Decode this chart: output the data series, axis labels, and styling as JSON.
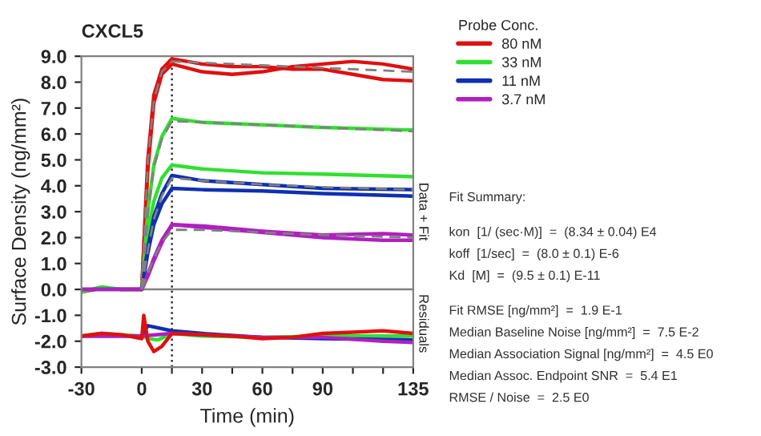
{
  "chart_data": {
    "type": "line",
    "title": "CXCL5",
    "xlabel": "Time (min)",
    "ylabel": "Surface Density (ng/mm²)",
    "legend_title": "Probe Conc.",
    "legend": "top right",
    "xlim": [
      -30,
      135
    ],
    "xticks": [
      -30,
      {
        "value": 15,
        "label": null
      },
      0,
      30,
      {
        "value": 45,
        "label": null
      },
      60,
      {
        "value": 75,
        "label": null
      },
      90,
      {
        "value": 105,
        "label": null
      },
      {
        "value": 120,
        "label": null
      },
      135
    ],
    "ylim": [
      -3,
      9
    ],
    "yticks": [
      {
        "value": -3,
        "label": "-3.0"
      },
      {
        "value": -2,
        "label": "-2.0"
      },
      {
        "value": -1,
        "label": "-1.0"
      },
      {
        "value": 0,
        "label": "0.0"
      },
      {
        "value": 1,
        "label": "1.0"
      },
      {
        "value": 2,
        "label": "2.0"
      },
      {
        "value": 3,
        "label": "3.0"
      },
      {
        "value": 4,
        "label": "4.0"
      },
      {
        "value": 5,
        "label": "5.0"
      },
      {
        "value": 6,
        "label": "6.0"
      },
      {
        "value": 7,
        "label": "7.0"
      },
      {
        "value": 8,
        "label": "8.0"
      },
      {
        "value": 9,
        "label": "9.0"
      }
    ],
    "grid": false,
    "marker": "none",
    "ref_lines": [
      {
        "axis": "y",
        "value": 0,
        "label": null,
        "color": "#808080",
        "line_style": "solid"
      },
      {
        "axis": "x",
        "value": 15,
        "label": null,
        "color": "#303030",
        "line_style": "dotted"
      }
    ],
    "series": [
      {
        "name": "80 nM",
        "color": "#e01010",
        "x": [
          -30,
          -20,
          -10,
          0,
          3,
          6,
          10,
          15,
          30,
          45,
          60,
          75,
          90,
          105,
          120,
          135
        ],
        "values": [
          -0.1,
          0.05,
          0.0,
          0.0,
          5.0,
          7.5,
          8.5,
          8.9,
          8.7,
          8.6,
          8.6,
          8.5,
          8.5,
          8.3,
          8.1,
          8.05
        ]
      },
      {
        "color": "#e01010",
        "x": [
          0,
          3,
          6,
          10,
          15,
          30,
          45,
          60,
          75,
          90,
          105,
          120,
          135
        ],
        "values": [
          0.0,
          4.6,
          7.2,
          8.3,
          8.7,
          8.4,
          8.3,
          8.4,
          8.6,
          8.7,
          8.8,
          8.7,
          8.5
        ]
      },
      {
        "name": "33 nM",
        "color": "#30e030",
        "x": [
          -30,
          -20,
          -10,
          0,
          3,
          6,
          10,
          15,
          30,
          60,
          90,
          135
        ],
        "values": [
          -0.1,
          0.1,
          0.0,
          0.0,
          3.0,
          4.8,
          5.9,
          6.6,
          6.45,
          6.35,
          6.25,
          6.15
        ]
      },
      {
        "color": "#30e030",
        "x": [
          0,
          3,
          6,
          10,
          15,
          30,
          60,
          90,
          135
        ],
        "values": [
          0.0,
          2.2,
          3.4,
          4.3,
          4.8,
          4.65,
          4.5,
          4.45,
          4.35
        ]
      },
      {
        "name": "11 nM",
        "color": "#1030b0",
        "x": [
          -30,
          -10,
          0,
          3,
          6,
          10,
          15,
          30,
          60,
          90,
          135
        ],
        "values": [
          0.0,
          0.0,
          0.0,
          1.6,
          2.8,
          3.7,
          4.4,
          4.2,
          4.05,
          3.9,
          3.85
        ]
      },
      {
        "color": "#1030b0",
        "x": [
          0,
          3,
          6,
          10,
          15,
          30,
          60,
          90,
          135
        ],
        "values": [
          0.0,
          1.4,
          2.5,
          3.3,
          3.9,
          3.85,
          3.8,
          3.7,
          3.6
        ]
      },
      {
        "name": "3.7 nM",
        "color": "#b020c0",
        "x": [
          -30,
          -10,
          0,
          3,
          6,
          10,
          15,
          30,
          60,
          90,
          120,
          135
        ],
        "values": [
          0.0,
          0.0,
          0.0,
          0.6,
          1.2,
          1.9,
          2.5,
          2.45,
          2.25,
          2.1,
          2.15,
          2.1
        ]
      },
      {
        "color": "#b020c0",
        "x": [
          0,
          3,
          6,
          10,
          15,
          30,
          60,
          90,
          120,
          135
        ],
        "values": [
          0.0,
          0.5,
          1.1,
          1.8,
          2.5,
          2.4,
          2.2,
          2.0,
          1.9,
          1.9
        ]
      },
      {
        "color": "#808080",
        "line_style": "dashed",
        "x": [
          0,
          3,
          6,
          10,
          15,
          30,
          60,
          90,
          135
        ],
        "values": [
          0.0,
          4.9,
          7.3,
          8.4,
          8.8,
          8.75,
          8.65,
          8.55,
          8.4
        ]
      },
      {
        "color": "#808080",
        "line_style": "dashed",
        "x": [
          0,
          3,
          6,
          10,
          15,
          30,
          60,
          90,
          135
        ],
        "values": [
          0.0,
          2.9,
          4.7,
          5.8,
          6.5,
          6.45,
          6.35,
          6.25,
          6.1
        ]
      },
      {
        "color": "#808080",
        "line_style": "dashed",
        "x": [
          0,
          3,
          6,
          10,
          15,
          30,
          60,
          90,
          135
        ],
        "values": [
          0.0,
          1.5,
          2.7,
          3.6,
          4.3,
          4.2,
          4.05,
          3.95,
          3.85
        ]
      },
      {
        "color": "#808080",
        "line_style": "dashed",
        "x": [
          0,
          3,
          6,
          10,
          15,
          30,
          60,
          90,
          135
        ],
        "values": [
          0.0,
          0.6,
          1.2,
          1.8,
          2.3,
          2.3,
          2.2,
          2.1,
          2.0
        ]
      },
      {
        "color": "#30e030",
        "x": [
          -30,
          -20,
          -10,
          0,
          3,
          8,
          15,
          30,
          60,
          90,
          135
        ],
        "values": [
          -1.8,
          -1.7,
          -1.75,
          -1.8,
          -1.9,
          -1.95,
          -1.7,
          -1.8,
          -1.85,
          -1.8,
          -1.8
        ]
      },
      {
        "color": "#1030b0",
        "x": [
          -30,
          0,
          3,
          15,
          30,
          60,
          90,
          135
        ],
        "values": [
          -1.8,
          -1.8,
          -1.4,
          -1.6,
          -1.7,
          -1.85,
          -1.9,
          -1.95
        ]
      },
      {
        "color": "#b020c0",
        "x": [
          -30,
          0,
          15,
          60,
          90,
          120,
          135
        ],
        "values": [
          -1.8,
          -1.8,
          -1.7,
          -1.85,
          -1.85,
          -2.0,
          -2.05
        ]
      },
      {
        "color": "#e01010",
        "x": [
          -30,
          -20,
          -10,
          0,
          1,
          3,
          6,
          10,
          15,
          30,
          45,
          60,
          75,
          90,
          105,
          120,
          135
        ],
        "values": [
          -1.8,
          -1.7,
          -1.75,
          -1.9,
          -1.0,
          -2.0,
          -2.4,
          -2.2,
          -1.7,
          -1.75,
          -1.8,
          -1.9,
          -1.85,
          -1.7,
          -1.65,
          -1.6,
          -1.7
        ]
      }
    ],
    "annotations": [
      "Data + Fit",
      "Residuals",
      "Fit Summary:",
      "kon  [1/ (sec·M)]  =  (8.34 ± 0.04) E4",
      "koff  [1/sec]  =  (8.0 ± 0.1) E-6",
      "Kd  [M]  =  (9.5 ± 0.1) E-11",
      "Fit RMSE [ng/mm²]  =  1.9 E-1",
      "Median Baseline Noise [ng/mm²]  =  7.5 E-2",
      "Median Association Signal [ng/mm²]  =  4.5 E0",
      "Median Assoc. Endpoint SNR  =  5.4 E1",
      "RMSE / Noise  =  2.5 E0"
    ]
  }
}
